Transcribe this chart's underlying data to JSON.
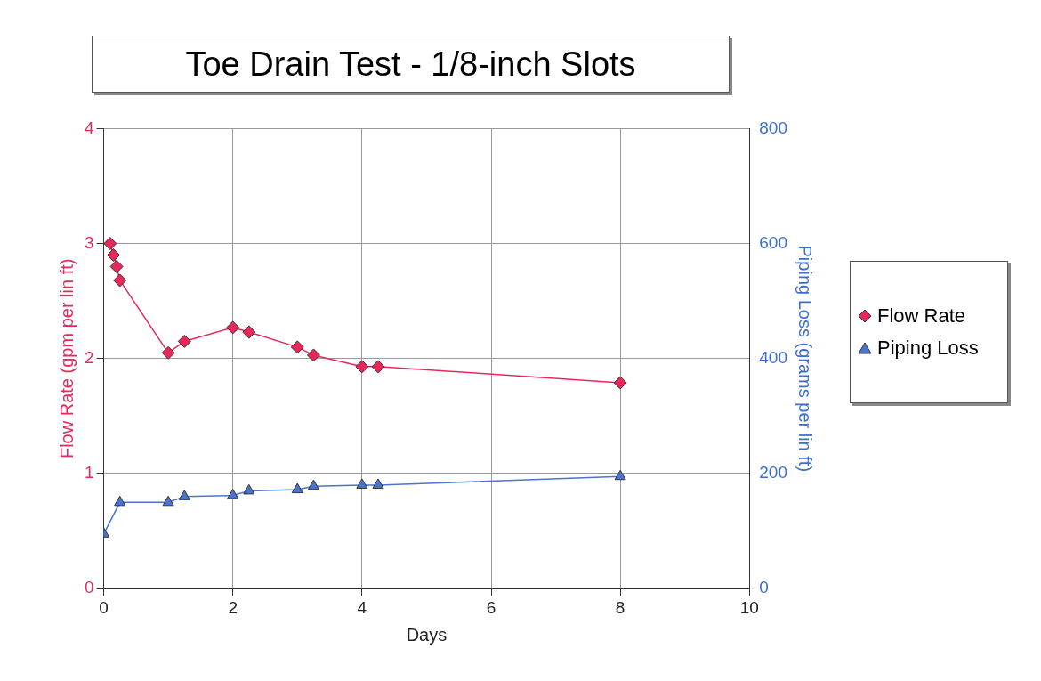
{
  "chart_data": {
    "type": "line",
    "title": "Toe Drain Test - 1/8-inch Slots",
    "xlabel": "Days",
    "ylabel": "Flow Rate (gpm per lin ft)",
    "y2label": "Piping Loss (grams per lin ft)",
    "xlim": [
      0,
      10
    ],
    "xticks": [
      0,
      2,
      4,
      6,
      8,
      10
    ],
    "ylim": [
      0,
      4
    ],
    "yticks": [
      0,
      1,
      2,
      3,
      4
    ],
    "y2lim": [
      0,
      800
    ],
    "y2ticks": [
      0,
      200,
      400,
      600,
      800
    ],
    "grid": true,
    "legend": "right",
    "series": [
      {
        "name": "Flow Rate",
        "color": "#e8285a",
        "marker": "diamond",
        "x": [
          0.1,
          0.15,
          0.2,
          0.25,
          1,
          1.25,
          2,
          2.25,
          3,
          3.25,
          4,
          4.25,
          8
        ],
        "values": [
          3.0,
          2.9,
          2.8,
          2.68,
          2.05,
          2.15,
          2.27,
          2.23,
          2.1,
          2.03,
          1.93,
          1.93,
          1.79
        ]
      },
      {
        "name": "Piping Loss",
        "color": "#4a74d0",
        "marker": "triangle",
        "axis": "y2",
        "x": [
          0,
          0.15,
          0.2,
          0.25,
          1,
          1.25,
          2,
          2.25,
          3,
          3.25,
          4,
          4.25,
          8
        ],
        "values": [
          95,
          null,
          null,
          150,
          150,
          160,
          162,
          170,
          172,
          178,
          180,
          180,
          195
        ]
      }
    ]
  }
}
